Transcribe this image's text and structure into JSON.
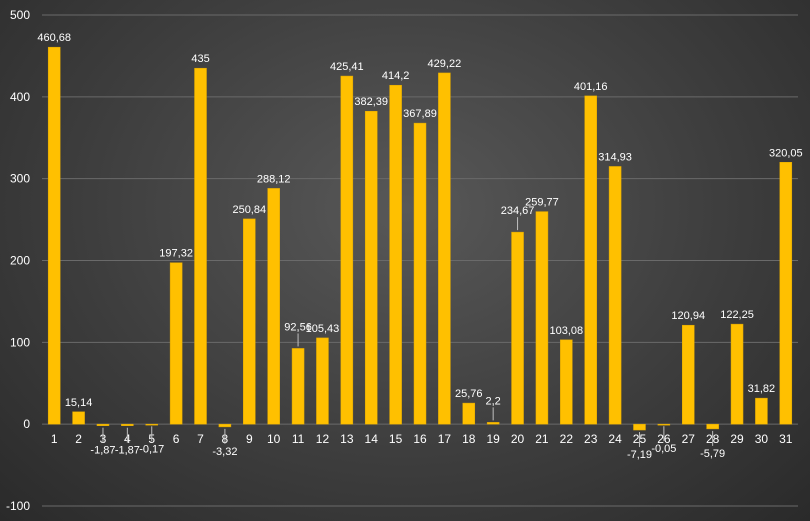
{
  "chart_data": {
    "type": "bar",
    "title": "",
    "xlabel": "",
    "ylabel": "",
    "ylim": [
      -100,
      500
    ],
    "yticks": [
      -100,
      0,
      100,
      200,
      300,
      400,
      500
    ],
    "grid": true,
    "legend": "none",
    "bar_color": "#FFC000",
    "categories": [
      "1",
      "2",
      "3",
      "4",
      "5",
      "6",
      "7",
      "8",
      "9",
      "10",
      "11",
      "12",
      "13",
      "14",
      "15",
      "16",
      "17",
      "18",
      "19",
      "20",
      "21",
      "22",
      "23",
      "24",
      "25",
      "26",
      "27",
      "28",
      "29",
      "30",
      "31"
    ],
    "values": [
      460.68,
      15.14,
      -1.87,
      -1.87,
      -0.17,
      197.32,
      435,
      -3.32,
      250.84,
      288.12,
      92.56,
      105.43,
      425.41,
      382.39,
      414.2,
      367.89,
      429.22,
      25.76,
      2.2,
      234.67,
      259.77,
      103.08,
      401.16,
      314.93,
      -7.19,
      -0.05,
      120.94,
      -5.79,
      122.25,
      31.82,
      320.05
    ],
    "data_labels": [
      "460,68",
      "15,14",
      "-1,87",
      "-1,87",
      "-0,17",
      "197,32",
      "435",
      "-3,32",
      "250,84",
      "288,12",
      "92,56",
      "105,43",
      "425,41",
      "382,39",
      "414,2",
      "367,89",
      "429,22",
      "25,76",
      "2,2",
      "234,67",
      "259,77",
      "103,08",
      "401,16",
      "314,93",
      "-7,19",
      "-0,05",
      "120,94",
      "-5,79",
      "122,25",
      "31,82",
      "320,05"
    ]
  }
}
